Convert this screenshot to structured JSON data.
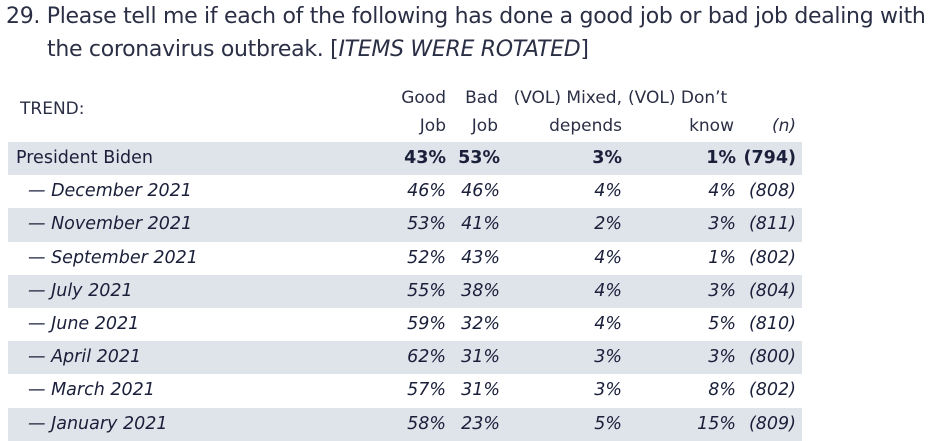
{
  "question": {
    "line1": "29. Please tell me if each of the following has done a good job or bad job dealing with",
    "line2_prefix": "the coronavirus outbreak. [",
    "line2_italic": "ITEMS WERE ROTATED",
    "line2_suffix": "]"
  },
  "table": {
    "trend_label": "TREND:",
    "headers": {
      "good_1": "Good",
      "good_2": "Job",
      "bad_1": "Bad",
      "bad_2": "Job",
      "mixed_1": "(VOL) Mixed,",
      "mixed_2": "depends",
      "dk_1": "(VOL) Don’t",
      "dk_2": "know",
      "n": "(n)"
    },
    "rows": [
      {
        "label": "President Biden",
        "good": "43%",
        "bad": "53%",
        "mixed": "3%",
        "dk": "1%",
        "n": "(794)"
      },
      {
        "label": "— December 2021",
        "good": "46%",
        "bad": "46%",
        "mixed": "4%",
        "dk": "4%",
        "n": "(808)"
      },
      {
        "label": "— November 2021",
        "good": "53%",
        "bad": "41%",
        "mixed": "2%",
        "dk": "3%",
        "n": "(811)"
      },
      {
        "label": "— September 2021",
        "good": "52%",
        "bad": "43%",
        "mixed": "4%",
        "dk": "1%",
        "n": "(802)"
      },
      {
        "label": "— July 2021",
        "good": "55%",
        "bad": "38%",
        "mixed": "4%",
        "dk": "3%",
        "n": "(804)"
      },
      {
        "label": "— June 2021",
        "good": "59%",
        "bad": "32%",
        "mixed": "4%",
        "dk": "5%",
        "n": "(810)"
      },
      {
        "label": "— April 2021",
        "good": "62%",
        "bad": "31%",
        "mixed": "3%",
        "dk": "3%",
        "n": "(800)"
      },
      {
        "label": "— March 2021",
        "good": "57%",
        "bad": "31%",
        "mixed": "3%",
        "dk": "8%",
        "n": "(802)"
      },
      {
        "label": "— January 2021",
        "good": "58%",
        "bad": "23%",
        "mixed": "5%",
        "dk": "15%",
        "n": "(809)"
      }
    ]
  }
}
